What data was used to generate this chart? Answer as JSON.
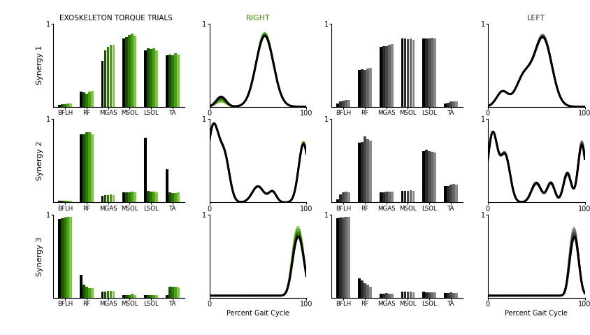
{
  "title": "EXOSKELETON TORQUE TRIALS",
  "right_label": "RIGHT",
  "left_label": "LEFT",
  "muscles": [
    "BFLH",
    "RF",
    "MGAS",
    "MSOL",
    "LSOL",
    "TA"
  ],
  "synergy_labels": [
    "Synergy 1",
    "Synergy 2",
    "Synergy 3"
  ],
  "green_colors": [
    "#000000",
    "#1a5200",
    "#2d7a00",
    "#4ca020",
    "#80c840",
    "#b0e060"
  ],
  "gray_colors": [
    "#000000",
    "#2a2a2a",
    "#484848",
    "#686868",
    "#8a8a8a",
    "#aaaaaa"
  ],
  "right_bars": {
    "S1": [
      [
        0.02,
        0.03,
        0.03,
        0.04,
        0.04,
        0.05
      ],
      [
        0.18,
        0.17,
        0.16,
        0.18,
        0.19,
        0.2
      ],
      [
        0.55,
        0.68,
        0.72,
        0.74,
        0.74,
        0.72
      ],
      [
        0.82,
        0.84,
        0.86,
        0.88,
        0.85,
        0.84
      ],
      [
        0.68,
        0.7,
        0.69,
        0.7,
        0.68,
        0.65
      ],
      [
        0.62,
        0.63,
        0.62,
        0.64,
        0.63,
        0.58
      ]
    ],
    "S2": [
      [
        0.02,
        0.02,
        0.02,
        0.02,
        0.02,
        0.03
      ],
      [
        0.82,
        0.82,
        0.84,
        0.84,
        0.82,
        0.8
      ],
      [
        0.08,
        0.09,
        0.09,
        0.1,
        0.09,
        0.09
      ],
      [
        0.12,
        0.12,
        0.12,
        0.13,
        0.12,
        0.11
      ],
      [
        0.78,
        0.14,
        0.13,
        0.13,
        0.12,
        0.12
      ],
      [
        0.4,
        0.12,
        0.11,
        0.11,
        0.12,
        0.14
      ]
    ],
    "S3": [
      [
        0.95,
        0.96,
        0.97,
        0.98,
        0.98,
        0.97
      ],
      [
        0.28,
        0.16,
        0.14,
        0.12,
        0.12,
        0.11
      ],
      [
        0.08,
        0.08,
        0.09,
        0.09,
        0.09,
        0.09
      ],
      [
        0.04,
        0.04,
        0.04,
        0.05,
        0.04,
        0.04
      ],
      [
        0.04,
        0.04,
        0.04,
        0.04,
        0.04,
        0.04
      ],
      [
        0.04,
        0.14,
        0.14,
        0.14,
        0.13,
        0.14
      ]
    ]
  },
  "left_bars": {
    "S1": [
      [
        0.04,
        0.06,
        0.07,
        0.08,
        0.08,
        0.09
      ],
      [
        0.44,
        0.45,
        0.44,
        0.46,
        0.47,
        0.45
      ],
      [
        0.72,
        0.73,
        0.73,
        0.74,
        0.75,
        0.73
      ],
      [
        0.82,
        0.82,
        0.81,
        0.82,
        0.8,
        0.78
      ],
      [
        0.82,
        0.82,
        0.82,
        0.83,
        0.82,
        0.79
      ],
      [
        0.04,
        0.05,
        0.06,
        0.06,
        0.06,
        0.07
      ]
    ],
    "S2": [
      [
        0.04,
        0.1,
        0.12,
        0.13,
        0.12,
        0.11
      ],
      [
        0.72,
        0.73,
        0.79,
        0.76,
        0.74,
        0.72
      ],
      [
        0.12,
        0.12,
        0.13,
        0.13,
        0.13,
        0.12
      ],
      [
        0.14,
        0.14,
        0.14,
        0.15,
        0.14,
        0.13
      ],
      [
        0.62,
        0.63,
        0.62,
        0.61,
        0.6,
        0.57
      ],
      [
        0.2,
        0.2,
        0.21,
        0.22,
        0.21,
        0.2
      ]
    ],
    "S3": [
      [
        0.96,
        0.97,
        0.97,
        0.98,
        0.98,
        0.98
      ],
      [
        0.24,
        0.21,
        0.18,
        0.16,
        0.14,
        0.13
      ],
      [
        0.05,
        0.05,
        0.06,
        0.05,
        0.05,
        0.05
      ],
      [
        0.08,
        0.08,
        0.08,
        0.08,
        0.07,
        0.07
      ],
      [
        0.08,
        0.07,
        0.07,
        0.07,
        0.07,
        0.07
      ],
      [
        0.06,
        0.06,
        0.07,
        0.06,
        0.06,
        0.06
      ]
    ]
  },
  "n_trials": 5,
  "xlabel": "Percent Gait Cycle",
  "ylim_bars": [
    0,
    1
  ],
  "ylim_lines": [
    0,
    1
  ]
}
